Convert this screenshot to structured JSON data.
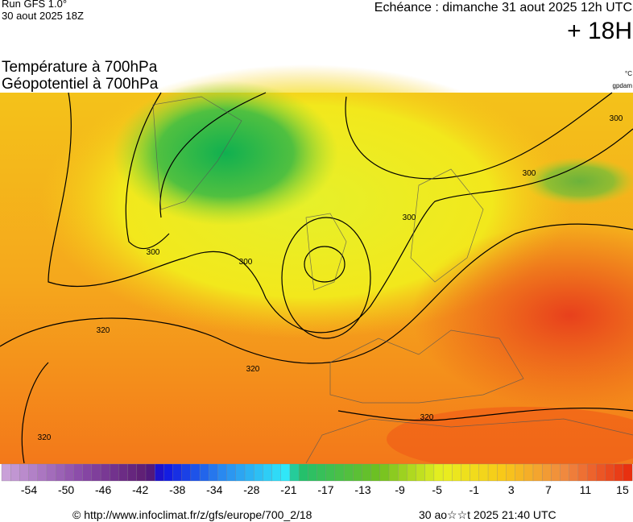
{
  "header": {
    "run": "Run GFS 1.0°",
    "run_date": "30 aout 2025 18Z",
    "valid": "Echéance : dimanche 31 aout 2025 12h UTC",
    "lead": "+ 18H"
  },
  "titles": {
    "line1": "Température à 700hPa",
    "line2": "Géopotentiel à 700hPa",
    "unit1": "°C",
    "unit2": "gpdam"
  },
  "contour_labels": [
    "300",
    "300",
    "300",
    "300",
    "300",
    "320",
    "320",
    "320",
    "320"
  ],
  "colorbar": {
    "labels": [
      -54,
      -50,
      -46,
      -42,
      -38,
      -34,
      -28,
      -21,
      -17,
      -13,
      -9,
      -5,
      -1,
      3,
      7,
      11,
      15
    ]
  },
  "footer": {
    "url": "© http://www.infoclimat.fr/z/gfs/europe/700_2/18",
    "time": "30 ao☆☆t 2025 21:40 UTC"
  }
}
